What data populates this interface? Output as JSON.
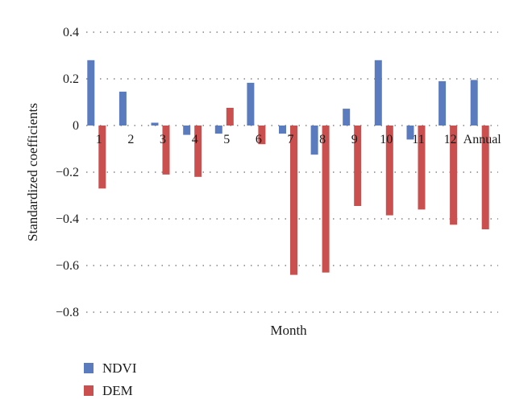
{
  "chart_data": {
    "type": "bar",
    "categories": [
      "1",
      "2",
      "3",
      "4",
      "5",
      "6",
      "7",
      "8",
      "9",
      "10",
      "11",
      "12",
      "Annual"
    ],
    "series": [
      {
        "name": "NDVI",
        "color": "#5b7bbf",
        "values": [
          0.28,
          0.145,
          0.012,
          -0.04,
          -0.035,
          0.183,
          -0.035,
          -0.125,
          0.072,
          0.28,
          -0.06,
          0.19,
          0.195
        ]
      },
      {
        "name": "DEM",
        "color": "#c9504e",
        "values": [
          -0.27,
          0.0,
          -0.21,
          -0.22,
          0.076,
          -0.08,
          -0.64,
          -0.63,
          -0.345,
          -0.385,
          -0.36,
          -0.425,
          -0.445
        ]
      }
    ],
    "yticks": [
      "0.4",
      "0.2",
      "0",
      "−0.2",
      "−0.4",
      "−0.6",
      "−0.8"
    ],
    "ytick_values": [
      0.4,
      0.2,
      0,
      -0.2,
      -0.4,
      -0.6,
      -0.8
    ],
    "ylim": [
      -0.8,
      0.4
    ],
    "xlabel": "Month",
    "ylabel": "Standardized coefficients",
    "grid": true,
    "legend_position": "bottom-left"
  }
}
